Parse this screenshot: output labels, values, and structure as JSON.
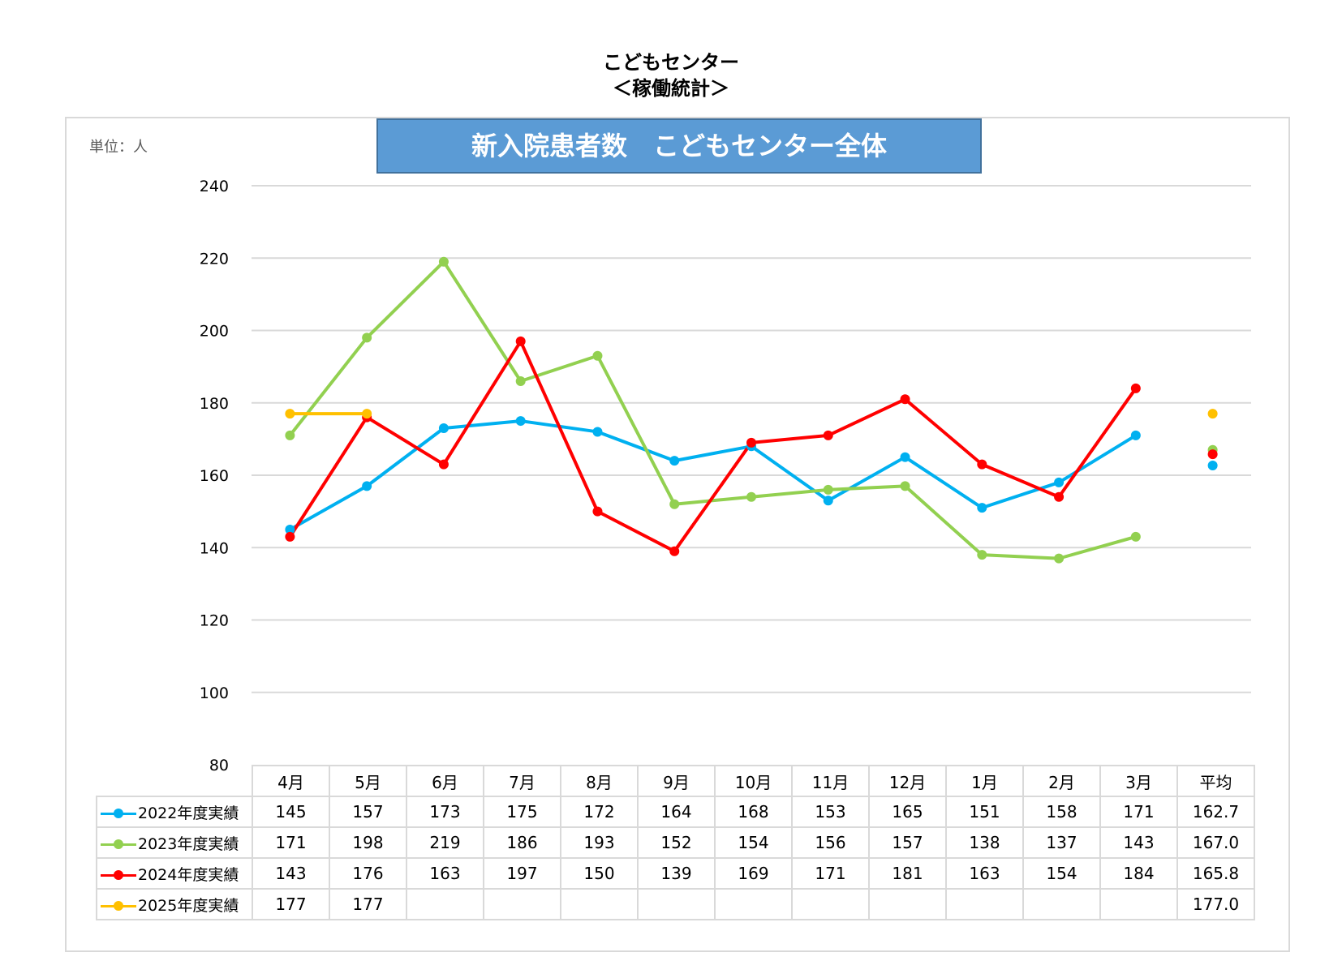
{
  "header": {
    "title_line1": "こどもセンター",
    "title_line2": "＜稼働統計＞"
  },
  "chart_data": {
    "type": "line",
    "title": "新入院患者数　こどもセンター全体",
    "unit_label": "単位：人",
    "categories": [
      "4月",
      "5月",
      "6月",
      "7月",
      "8月",
      "9月",
      "10月",
      "11月",
      "12月",
      "1月",
      "2月",
      "3月"
    ],
    "average_label": "平均",
    "ylim": [
      80,
      240
    ],
    "yticks": [
      80,
      100,
      120,
      140,
      160,
      180,
      200,
      220,
      240
    ],
    "grid": true,
    "legend_placement": "table-left",
    "series": [
      {
        "name": "2022年度実績",
        "color": "#00b0f0",
        "values": [
          145,
          157,
          173,
          175,
          172,
          164,
          168,
          153,
          165,
          151,
          158,
          171
        ],
        "average": 162.7
      },
      {
        "name": "2023年度実績",
        "color": "#92d050",
        "values": [
          171,
          198,
          219,
          186,
          193,
          152,
          154,
          156,
          157,
          138,
          137,
          143
        ],
        "average": 167.0
      },
      {
        "name": "2024年度実績",
        "color": "#ff0000",
        "values": [
          143,
          176,
          163,
          197,
          150,
          139,
          169,
          171,
          181,
          163,
          154,
          184
        ],
        "average": 165.8
      },
      {
        "name": "2025年度実績",
        "color": "#ffc000",
        "values": [
          177,
          177,
          null,
          null,
          null,
          null,
          null,
          null,
          null,
          null,
          null,
          null
        ],
        "average": 177.0
      }
    ]
  }
}
